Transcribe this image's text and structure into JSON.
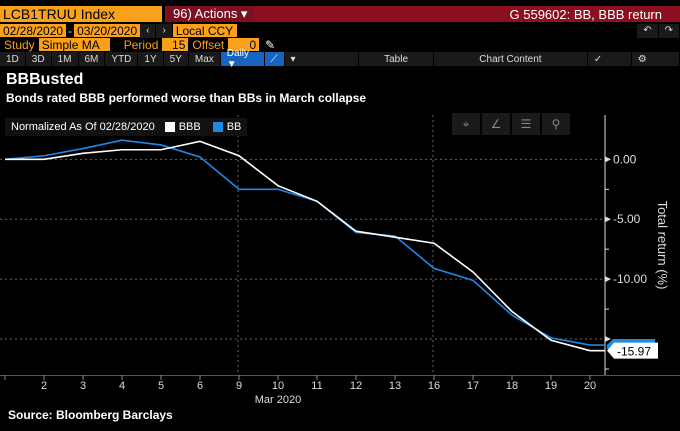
{
  "header": {
    "ticker": "LCB1TRUU Index",
    "actions": "96) Actions ▾",
    "graph_title": "G 559602: BB, BBB return"
  },
  "controls": {
    "start_date": "02/28/2020",
    "dash": "-",
    "end_date": "03/20/2020",
    "currency": "Local CCY",
    "study_label": "Study",
    "study": "Simple MA",
    "period_label": "Period",
    "period": "15",
    "offset_label": "Offset",
    "offset": "0"
  },
  "toolbar": {
    "ranges": [
      "1D",
      "3D",
      "1M",
      "6M",
      "YTD",
      "1Y",
      "5Y",
      "Max"
    ],
    "frequency": "Daily ▼",
    "table": "Table",
    "chart_content": "Chart Content"
  },
  "chart_data": {
    "type": "line",
    "title": "BBBusted",
    "subtitle": "Bonds rated BBB performed worse than BBs in March collapse",
    "legend_prefix": "Normalized As Of 02/28/2020",
    "x": [
      "2020-02-28",
      "2020-03-02",
      "2020-03-03",
      "2020-03-04",
      "2020-03-05",
      "2020-03-06",
      "2020-03-09",
      "2020-03-10",
      "2020-03-11",
      "2020-03-12",
      "2020-03-13",
      "2020-03-16",
      "2020-03-17",
      "2020-03-18",
      "2020-03-19",
      "2020-03-20"
    ],
    "xticks": [
      "",
      "2",
      "3",
      "4",
      "5",
      "6",
      "9",
      "10",
      "11",
      "12",
      "13",
      "16",
      "17",
      "18",
      "19",
      "20"
    ],
    "xlabel": "Mar 2020",
    "ylabel": "Total return (%)",
    "yticks": [
      "0.00",
      "-5.00",
      "-10.00",
      "-15.00"
    ],
    "ylim": [
      -18,
      3.7
    ],
    "series": [
      {
        "name": "BBB",
        "color": "#ffffff",
        "values": [
          0,
          0,
          0.5,
          0.8,
          0.8,
          1.5,
          0.3,
          -2.2,
          -3.5,
          -6.0,
          -6.5,
          -7.0,
          -9.4,
          -12.7,
          -15.1,
          -15.97
        ],
        "last_label": "-15.97"
      },
      {
        "name": "BB",
        "color": "#1e88e5",
        "values": [
          0,
          0.3,
          0.9,
          1.6,
          1.2,
          0.2,
          -2.5,
          -2.5,
          -3.5,
          -6.1,
          -6.4,
          -9.1,
          -10.1,
          -13.0,
          -14.9,
          -15.5
        ]
      }
    ]
  },
  "source": "Source: Bloomberg Barclays"
}
